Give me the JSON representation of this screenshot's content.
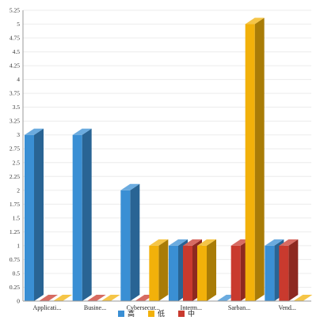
{
  "chart_data": {
    "type": "bar",
    "categories": [
      "Applicati...",
      "Busine...",
      "Cybersecur...",
      "Interm...",
      "Sarban...",
      "Vend..."
    ],
    "series": [
      {
        "name": "高",
        "color": "#3a8fd4",
        "values": [
          3,
          3,
          2,
          1,
          0,
          1
        ]
      },
      {
        "name": "低",
        "color": "#f2b10a",
        "values": [
          0,
          0,
          1,
          1,
          5,
          0
        ]
      },
      {
        "name": "中",
        "color": "#c93a2e",
        "values": [
          0,
          0,
          0,
          1,
          1,
          1
        ]
      }
    ],
    "series_order": [
      [
        "高",
        "中",
        "低"
      ],
      [
        "高",
        "中",
        "低"
      ],
      [
        "高",
        "中",
        "低"
      ],
      [
        "高",
        "中",
        "低"
      ],
      [
        "高",
        "中",
        "低"
      ],
      [
        "高",
        "中",
        "低"
      ]
    ],
    "ylim": [
      0,
      5.25
    ],
    "ytick_step": 0.25,
    "yticks": [
      "0",
      "0.25",
      "0.5",
      "0.75",
      "1",
      "1.25",
      "1.5",
      "1.75",
      "2",
      "2.25",
      "2.5",
      "2.75",
      "3",
      "3.25",
      "3.5",
      "3.75",
      "4",
      "4.25",
      "4.5",
      "4.75",
      "5",
      "5.25"
    ],
    "grid": true,
    "legend_position": "bottom-center",
    "style": "3d-bar"
  }
}
